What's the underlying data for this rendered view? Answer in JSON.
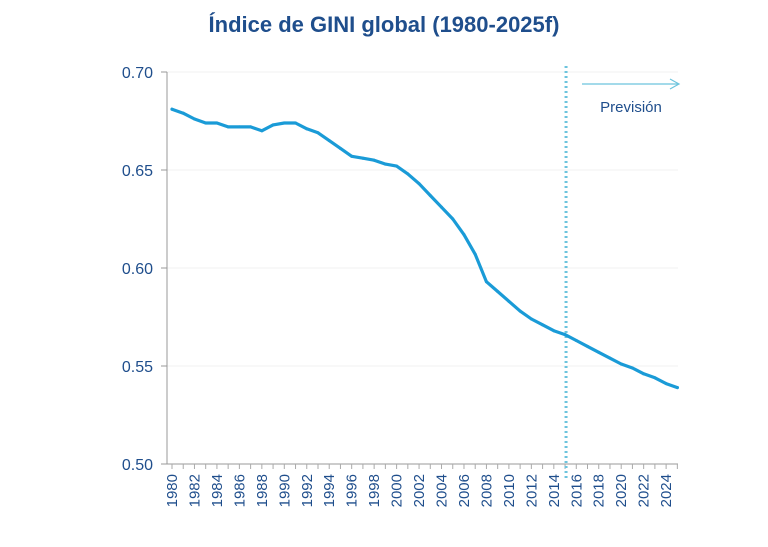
{
  "chart_data": {
    "type": "line",
    "title": "Índice de GINI global (1980-2025f)",
    "xlabel": "",
    "ylabel": "",
    "ylim": [
      0.5,
      0.7
    ],
    "xlim": [
      1980,
      2025
    ],
    "yticks": [
      "0.50",
      "0.55",
      "0.60",
      "0.65",
      "0.70"
    ],
    "xticks": [
      "1980",
      "1982",
      "1984",
      "1986",
      "1988",
      "1990",
      "1992",
      "1994",
      "1996",
      "1998",
      "2000",
      "2002",
      "2004",
      "2006",
      "2008",
      "2010",
      "2012",
      "2014",
      "2016",
      "2018",
      "2020",
      "2022",
      "2024"
    ],
    "grid": true,
    "line_color": "#1a9bd7",
    "forecast_line_color": "#6cc4dd",
    "forecast_start": 2015,
    "forecast_label": "Previsión",
    "x": [
      1980,
      1981,
      1982,
      1983,
      1984,
      1985,
      1986,
      1987,
      1988,
      1989,
      1990,
      1991,
      1992,
      1993,
      1994,
      1995,
      1996,
      1997,
      1998,
      1999,
      2000,
      2001,
      2002,
      2003,
      2004,
      2005,
      2006,
      2007,
      2008,
      2009,
      2010,
      2011,
      2012,
      2013,
      2014,
      2015,
      2016,
      2017,
      2018,
      2019,
      2020,
      2021,
      2022,
      2023,
      2024,
      2025
    ],
    "values": [
      0.681,
      0.679,
      0.676,
      0.674,
      0.674,
      0.672,
      0.672,
      0.672,
      0.67,
      0.673,
      0.674,
      0.674,
      0.671,
      0.669,
      0.665,
      0.661,
      0.657,
      0.656,
      0.655,
      0.653,
      0.652,
      0.648,
      0.643,
      0.637,
      0.631,
      0.625,
      0.617,
      0.607,
      0.593,
      0.588,
      0.583,
      0.578,
      0.574,
      0.571,
      0.568,
      0.566,
      0.563,
      0.56,
      0.557,
      0.554,
      0.551,
      0.549,
      0.546,
      0.544,
      0.541,
      0.539
    ]
  }
}
